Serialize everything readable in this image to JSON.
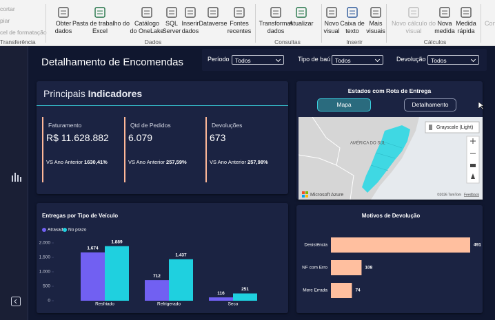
{
  "ribbon": {
    "clipboard": {
      "items": [
        "cortar",
        "piar",
        "cel de formatação"
      ],
      "label": "Transferência"
    },
    "groups": [
      {
        "label": "Dados",
        "buttons": [
          {
            "lines": [
              "Obter",
              "dados"
            ]
          },
          {
            "lines": [
              "Pasta de trabalho do",
              "Excel"
            ]
          },
          {
            "lines": [
              "Catálogo",
              "do OneLake"
            ]
          },
          {
            "lines": [
              "SQL",
              "Server"
            ]
          },
          {
            "lines": [
              "Inserir",
              "dados"
            ]
          },
          {
            "lines": [
              "Dataverse"
            ]
          },
          {
            "lines": [
              "Fontes",
              "recentes"
            ]
          }
        ]
      },
      {
        "label": "Consultas",
        "buttons": [
          {
            "lines": [
              "Transformar",
              "dados"
            ]
          },
          {
            "lines": [
              "Atualizar"
            ]
          }
        ]
      },
      {
        "label": "Inserir",
        "buttons": [
          {
            "lines": [
              "Novo",
              "visual"
            ]
          },
          {
            "lines": [
              "Caixa de",
              "texto"
            ]
          },
          {
            "lines": [
              "Mais",
              "visuais"
            ]
          }
        ]
      },
      {
        "label": "Cálculos",
        "buttons": [
          {
            "lines": [
              "Novo cálculo do",
              "visual"
            ]
          },
          {
            "lines": [
              "Nova",
              "medida"
            ]
          },
          {
            "lines": [
              "Medida",
              "rápida"
            ]
          }
        ]
      }
    ],
    "overflow": "Conf"
  },
  "report": {
    "title": "Detalhamento de Encomendas",
    "filters": [
      {
        "label": "Período",
        "value": "Todos"
      },
      {
        "label": "Tipo de baú",
        "value": "Todos"
      },
      {
        "label": "Devolução",
        "value": "Todos"
      }
    ],
    "kpis": {
      "title_prefix": "Principais",
      "title_bold": "Indicadores",
      "items": [
        {
          "label": "Faturamento",
          "value": "R$ 11.628.882",
          "compare_label": "VS Ano Anterior",
          "compare_value": "1630,41%"
        },
        {
          "label": "Qtd de Pedidos",
          "value": "6.079",
          "compare_label": "VS Ano Anterior",
          "compare_value": "257,59%"
        },
        {
          "label": "Devoluções",
          "value": "673",
          "compare_label": "VS Ano Anterior",
          "compare_value": "257,98%"
        }
      ]
    },
    "map": {
      "title": "Estados com Rota de Entrega",
      "tabs": [
        "Mapa",
        "Detalhamento"
      ],
      "style": "Grayscale (Light)",
      "region_label": "AMÉRICA DO SUL",
      "brand": "Microsoft Azure",
      "copyright": "©2026 TomTom",
      "feedback": "Feedback"
    }
  },
  "bar_chart": {
    "type": "bar",
    "title": "Entregas por Tipo de Veículo",
    "categories": [
      "Resfriado",
      "Refrigerado",
      "Seco"
    ],
    "series": [
      {
        "name": "Atrasada",
        "color": "#7160f2",
        "values": [
          1674,
          712,
          116
        ],
        "value_labels": [
          "1.674",
          "712",
          "116"
        ]
      },
      {
        "name": "No prazo",
        "color": "#1fd0df",
        "values": [
          1889,
          1437,
          251
        ],
        "value_labels": [
          "1.889",
          "1.437",
          "251"
        ]
      }
    ],
    "ylim": [
      0,
      2000
    ],
    "yticks": [
      0,
      500,
      {
        "value": 1000,
        "label": "1.000"
      },
      {
        "value": 1500,
        "label": "1.500"
      },
      {
        "value": 2000,
        "label": "2.000"
      }
    ]
  },
  "returns_chart": {
    "type": "hbar",
    "title": "Motivos de Devolução",
    "categories": [
      "Desistência",
      "NF com Erro",
      "Merc Errada"
    ],
    "values": [
      491,
      108,
      74
    ],
    "color": "#ffbf9f"
  }
}
